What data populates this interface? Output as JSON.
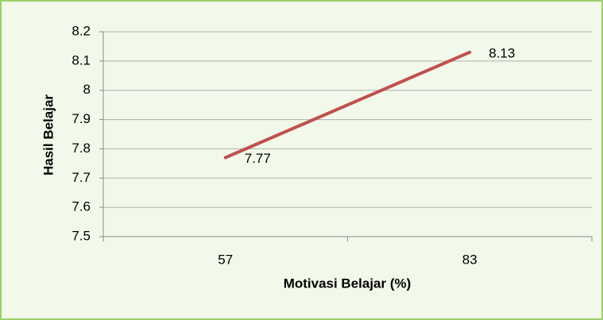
{
  "chart_data": {
    "type": "line",
    "categories": [
      "57",
      "83"
    ],
    "series": [
      {
        "name": "Hasil Belajar",
        "color": "#c0504d",
        "values": [
          7.77,
          8.13
        ]
      }
    ],
    "xlabel": "Motivasi Belajar (%)",
    "ylabel": "Hasil Belajar",
    "ylim": [
      7.5,
      8.2
    ],
    "yticks": [
      7.5,
      7.6,
      7.7,
      7.8,
      7.9,
      8,
      8.1,
      8.2
    ],
    "grid": true
  }
}
